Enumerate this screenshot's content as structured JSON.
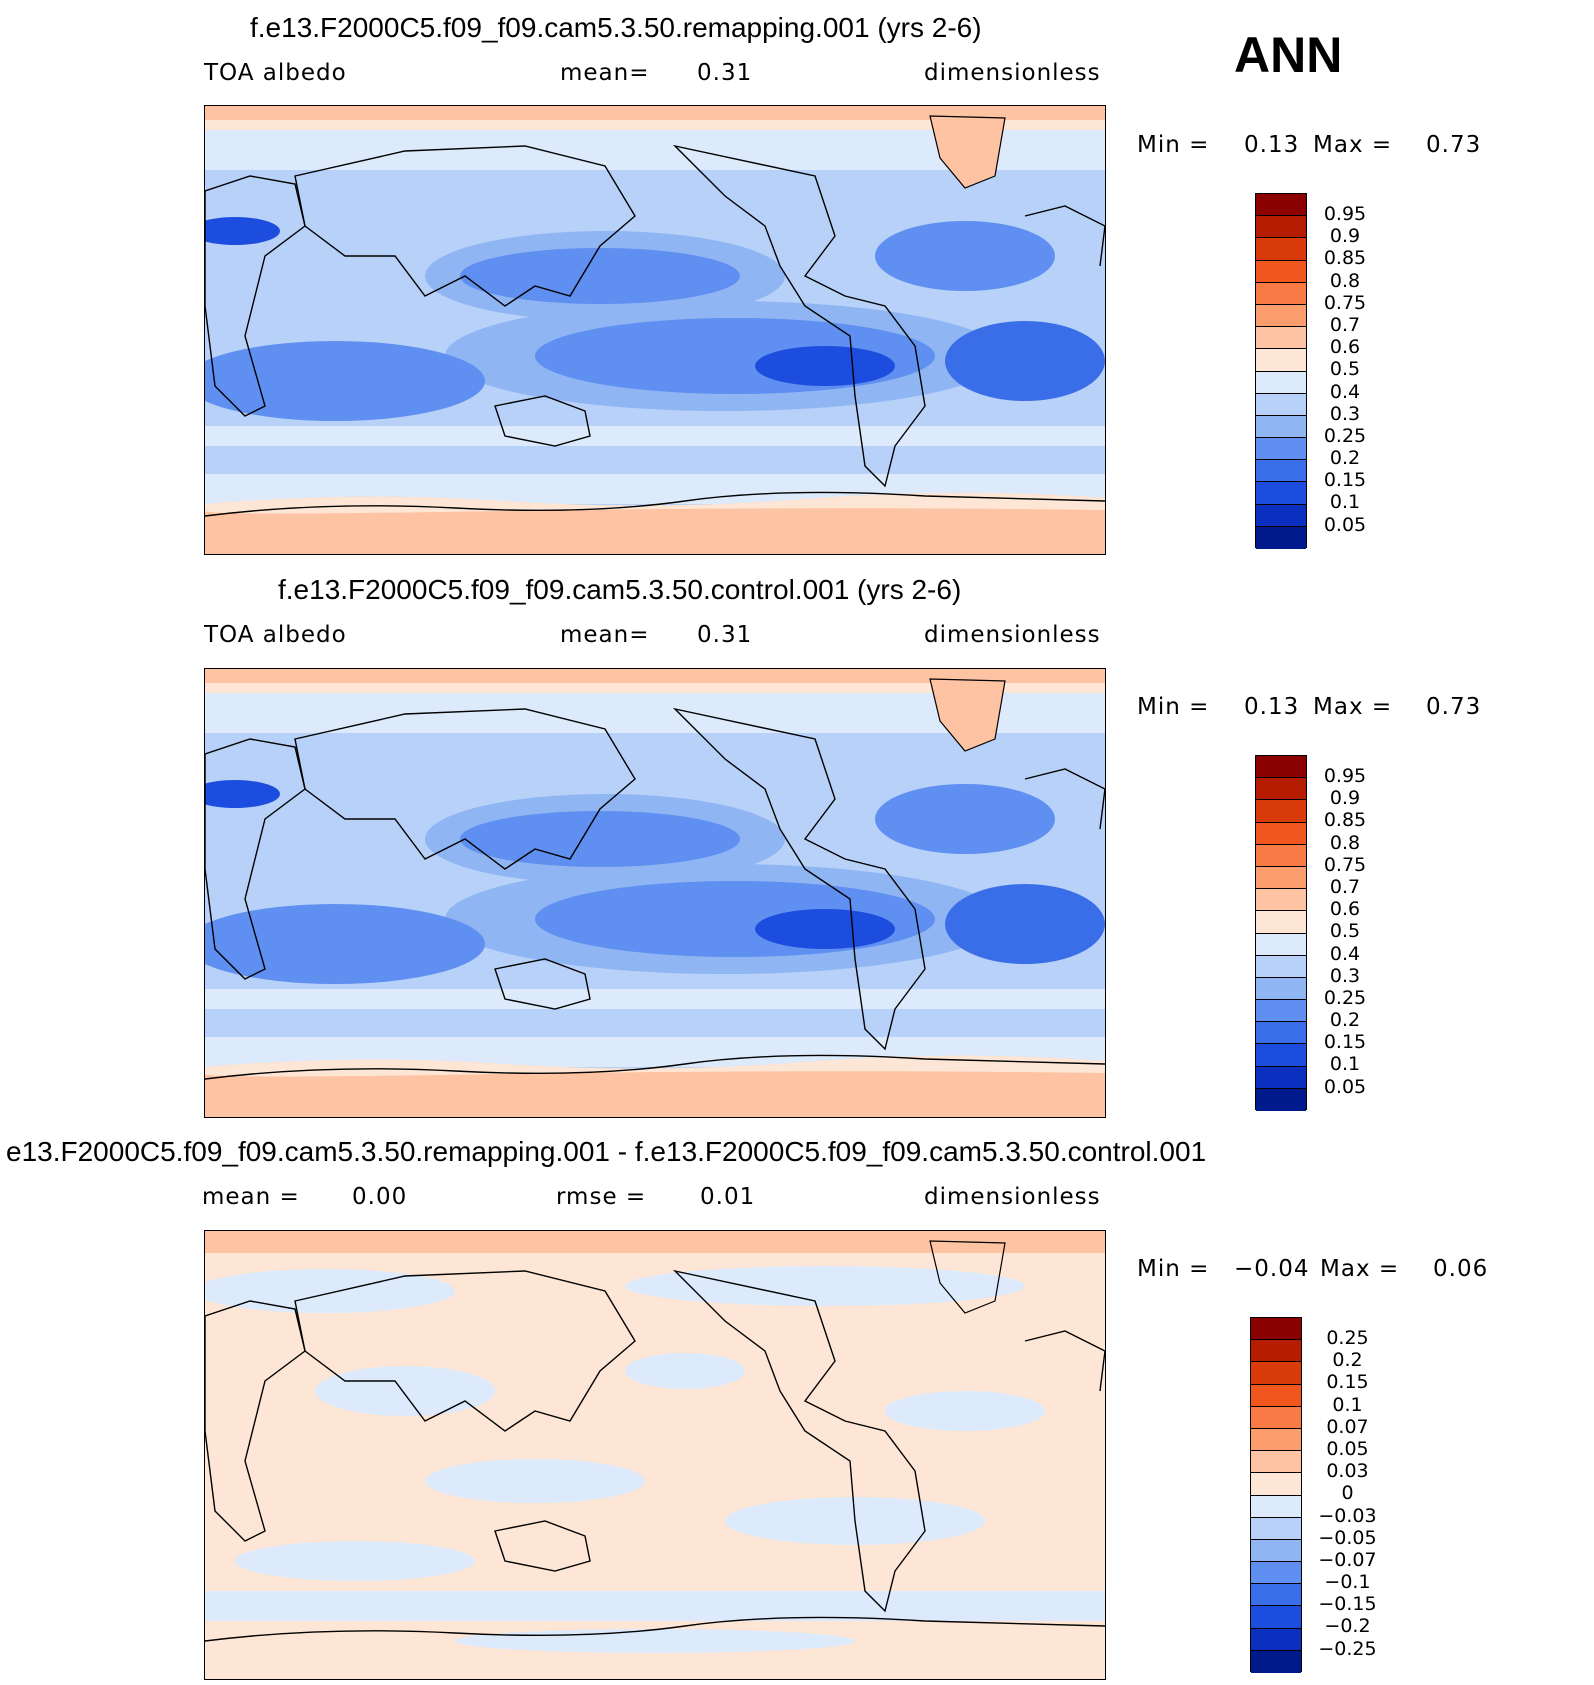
{
  "header": {
    "season": "ANN"
  },
  "panels": [
    {
      "title": "f.e13.F2000C5.f09_f09.cam5.3.50.remapping.001 (yrs 2-6)",
      "left_label": "TOA albedo",
      "center_label": "mean=",
      "center_value": "0.31",
      "right_label": "dimensionless",
      "min_label": "Min =",
      "min_value": "0.13",
      "max_label": "Max =",
      "max_value": "0.73",
      "scale": "abs"
    },
    {
      "title": "f.e13.F2000C5.f09_f09.cam5.3.50.control.001 (yrs 2-6)",
      "left_label": "TOA albedo",
      "center_label": "mean=",
      "center_value": "0.31",
      "right_label": "dimensionless",
      "min_label": "Min =",
      "min_value": "0.13",
      "max_label": "Max =",
      "max_value": "0.73",
      "scale": "abs"
    },
    {
      "title": "e13.F2000C5.f09_f09.cam5.3.50.remapping.001 - f.e13.F2000C5.f09_f09.cam5.3.50.control.001",
      "left_label": "mean =",
      "left_value": "0.00",
      "center_label": "rmse =",
      "center_value": "0.01",
      "right_label": "dimensionless",
      "min_label": "Min =",
      "min_value": "−0.04",
      "max_label": "Max =",
      "max_value": "0.06",
      "scale": "diff"
    }
  ],
  "colorbars": {
    "abs": {
      "labels": [
        "0.95",
        "0.9",
        "0.85",
        "0.8",
        "0.75",
        "0.7",
        "0.6",
        "0.5",
        "0.4",
        "0.3",
        "0.25",
        "0.2",
        "0.15",
        "0.1",
        "0.05"
      ],
      "colors": [
        "#8b0000",
        "#b51c00",
        "#d93a0a",
        "#f0561e",
        "#fa7a45",
        "#fc9d6e",
        "#fdc3a3",
        "#fde6d6",
        "#dceafb",
        "#b7d1f8",
        "#8fb5f3",
        "#5f8ff0",
        "#3a6ee8",
        "#1d4dde",
        "#0b30c0",
        "#001a8c"
      ]
    },
    "diff": {
      "labels": [
        "0.25",
        "0.2",
        "0.15",
        "0.1",
        "0.07",
        "0.05",
        "0.03",
        "0",
        "−0.03",
        "−0.05",
        "−0.07",
        "−0.1",
        "−0.15",
        "−0.2",
        "−0.25"
      ],
      "colors": [
        "#8b0000",
        "#b51c00",
        "#d93a0a",
        "#f0561e",
        "#fa7a45",
        "#fc9d6e",
        "#fdc3a3",
        "#fde6d6",
        "#dceafb",
        "#b7d1f8",
        "#8fb5f3",
        "#5f8ff0",
        "#3a6ee8",
        "#1d4dde",
        "#0b30c0",
        "#001a8c"
      ]
    }
  }
}
